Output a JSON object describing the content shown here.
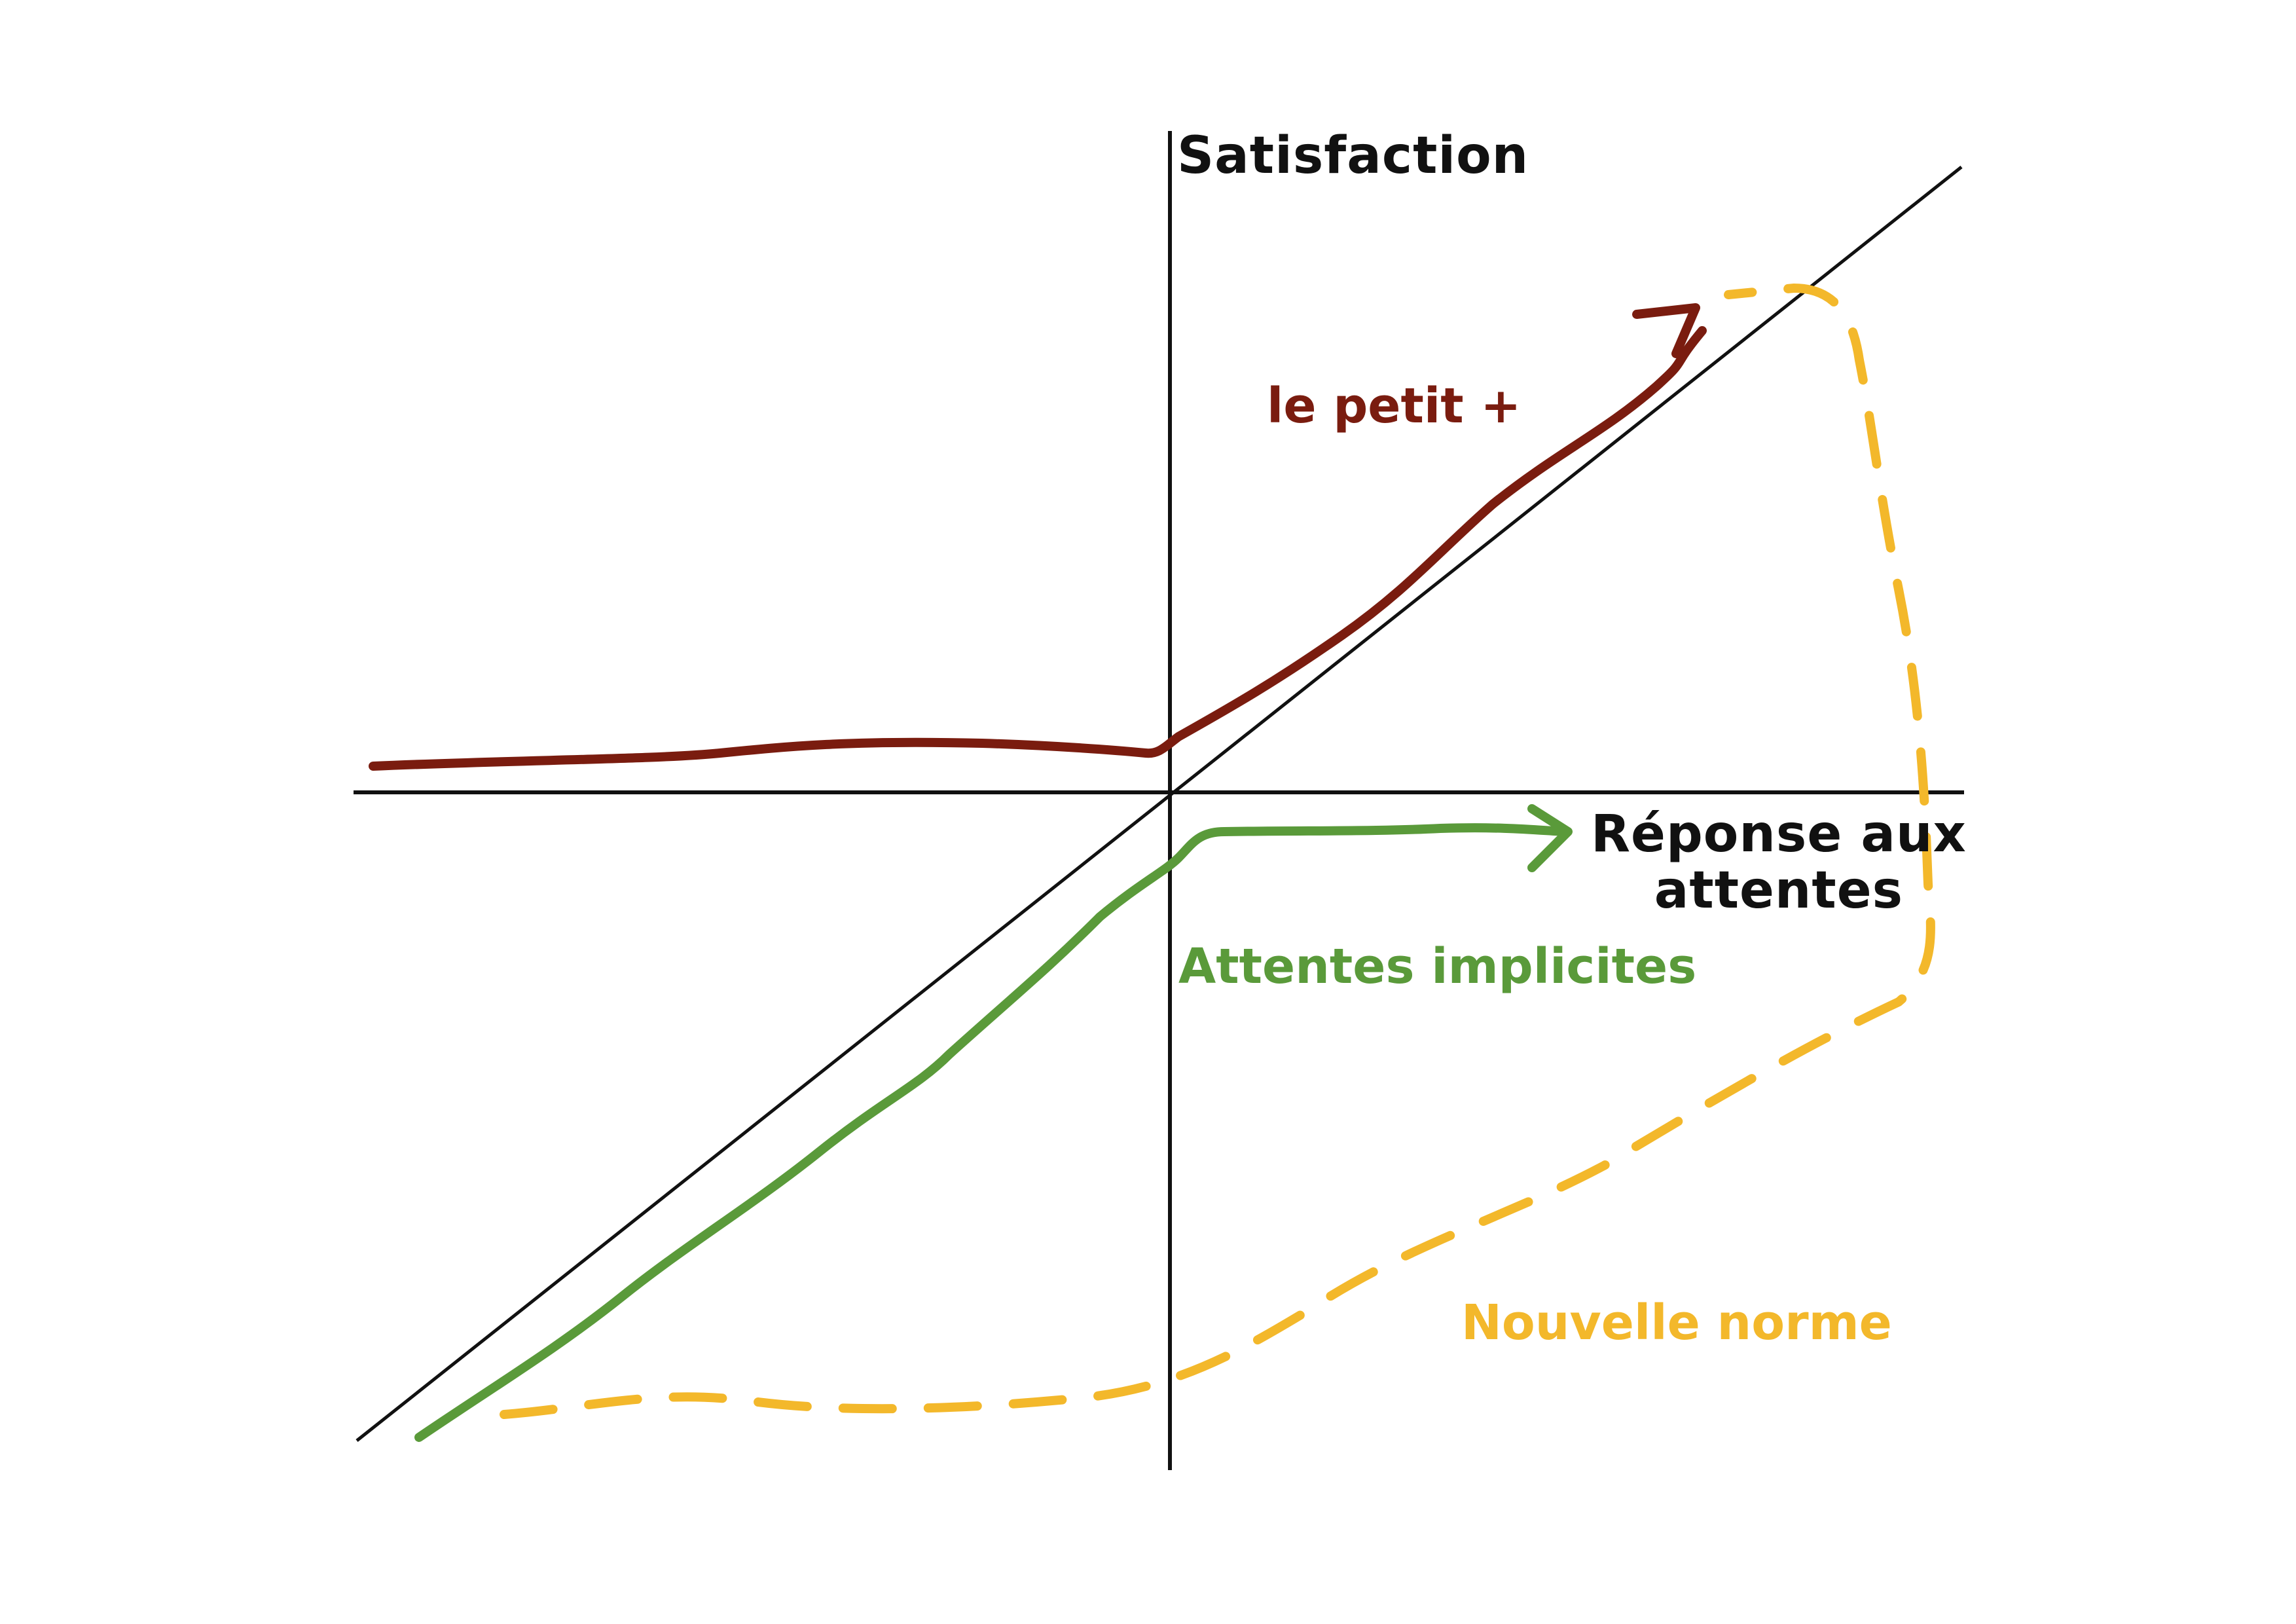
{
  "axes": {
    "y_label": "Satisfaction",
    "x_label_line1": "Réponse aux",
    "x_label_line2": "attentes"
  },
  "curves": {
    "petit_plus": {
      "label": "le petit +",
      "color": "#7a1c0f"
    },
    "implicites": {
      "label": "Attentes implicites",
      "color": "#5a9a3a"
    },
    "nouvelle_norme": {
      "label": "Nouvelle norme",
      "color": "#f3b82b"
    }
  },
  "colors": {
    "axis": "#111111",
    "background": "#ffffff"
  }
}
